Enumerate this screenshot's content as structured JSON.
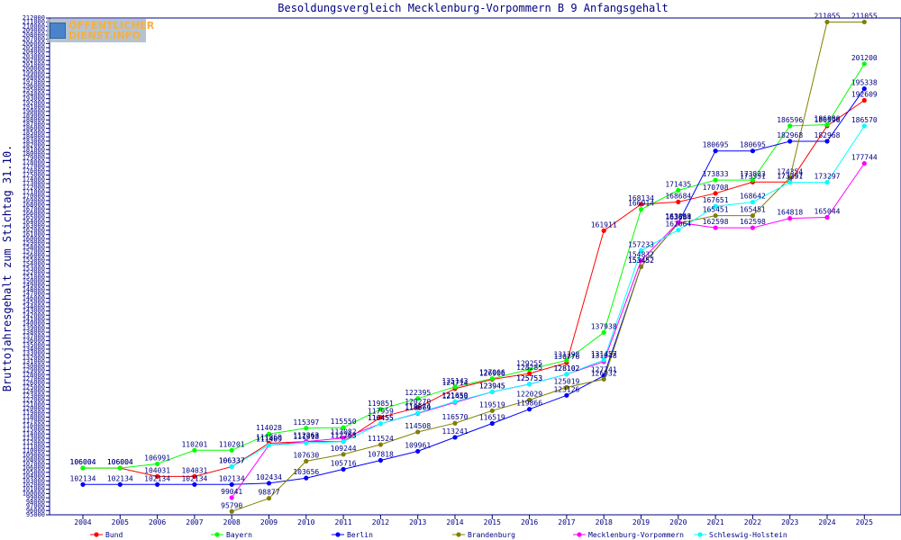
{
  "chart_data": {
    "type": "line",
    "title": "Besoldungsvergleich Mecklenburg-Vorpommern B 9 Anfangsgehalt",
    "ylabel": "Bruttojahresgehalt zum Stichtag 31.10.",
    "xlabel": "",
    "x": [
      "2004",
      "2005",
      "2006",
      "2007",
      "2008",
      "2009",
      "2010",
      "2011",
      "2012",
      "2013",
      "2014",
      "2015",
      "2016",
      "2017",
      "2018",
      "2019",
      "2020",
      "2021",
      "2022",
      "2023",
      "2024",
      "2025"
    ],
    "ylim": [
      95000,
      212000
    ],
    "grid": false,
    "legend_position": "bottom",
    "series": [
      {
        "name": "Bund",
        "color": "#ff0000",
        "values": [
          106004,
          106004,
          104031,
          104031,
          106337,
          111860,
          112263,
          112263,
          117959,
          120270,
          124714,
          126906,
          128285,
          130776,
          161911,
          168134,
          168684,
          170708,
          173351,
          173351,
          186596,
          192609
        ]
      },
      {
        "name": "Bayern",
        "color": "#00ff00",
        "values": [
          106004,
          106004,
          106991,
          110201,
          110201,
          114028,
          115397,
          115550,
          119851,
          122395,
          125143,
          127066,
          129255,
          131398,
          137938,
          166914,
          171435,
          173833,
          173833,
          186596,
          186880,
          201200
        ]
      },
      {
        "name": "Berlin",
        "color": "#0000ff",
        "values": [
          102134,
          102134,
          102134,
          102134,
          102134,
          102434,
          103656,
          105716,
          107818,
          109961,
          113241,
          116519,
          119866,
          123126,
          127741,
          153452,
          163684,
          180695,
          180695,
          182968,
          182968,
          195338
        ]
      },
      {
        "name": "Brandenburg",
        "color": "#808000",
        "values": [
          null,
          null,
          null,
          null,
          95790,
          98877,
          107630,
          109244,
          111524,
          114508,
          116570,
          119519,
          122029,
          125019,
          126932,
          153452,
          163684,
          165451,
          165451,
          174354,
          211055,
          211055
        ]
      },
      {
        "name": "Mecklenburg-Vorpommern",
        "color": "#ff00ff",
        "values": [
          null,
          null,
          null,
          null,
          99041,
          111409,
          112263,
          113082,
          116455,
          118869,
          121450,
          123945,
          125753,
          128102,
          131048,
          154832,
          163869,
          162598,
          162598,
          164818,
          165044,
          177744
        ]
      },
      {
        "name": "Schleswig-Holstein",
        "color": "#00ffff",
        "values": [
          null,
          null,
          null,
          null,
          106337,
          111409,
          111918,
          112263,
          116455,
          118974,
          121659,
          123945,
          125753,
          128102,
          131457,
          157233,
          162064,
          167651,
          168642,
          173297,
          173297,
          186570
        ]
      }
    ]
  },
  "logo": {
    "line1": "ÖFFENTLICHER",
    "line2": "DIENST.INFO"
  }
}
